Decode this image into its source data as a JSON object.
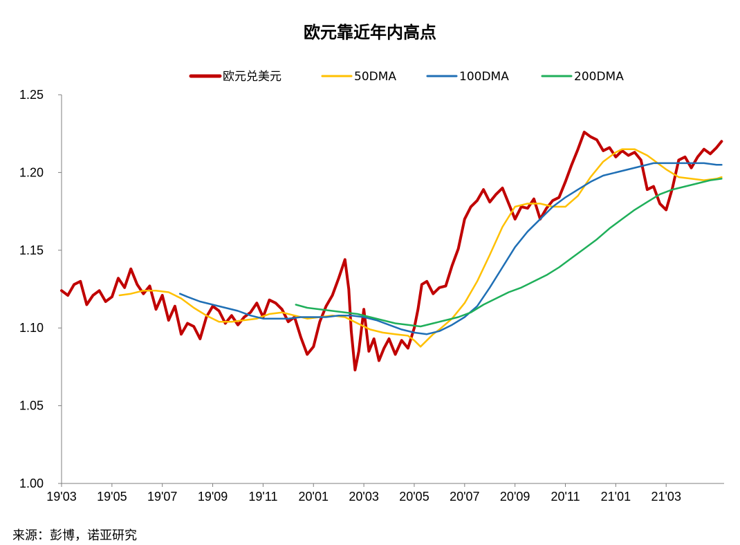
{
  "chart_data": {
    "type": "line",
    "title": "欧元靠近年内高点",
    "source": "来源：彭博，诺亚研究",
    "xlabel": "",
    "ylabel": "",
    "ylim": [
      1.0,
      1.25
    ],
    "yticks": [
      "1.25",
      "1.20",
      "1.15",
      "1.10",
      "1.05",
      "1.00"
    ],
    "ytick_values": [
      1.25,
      1.2,
      1.15,
      1.1,
      1.05,
      1.0
    ],
    "xlim": [
      0,
      26.3
    ],
    "xticks": [
      "19'03",
      "19'05",
      "19'07",
      "19'09",
      "19'11",
      "20'01",
      "20'03",
      "20'05",
      "20'07",
      "20'09",
      "20'11",
      "21'01",
      "21'03"
    ],
    "xtick_values": [
      0,
      2,
      4,
      6,
      8,
      10,
      12,
      14,
      16,
      18,
      20,
      22,
      24
    ],
    "legend_position": "top-center",
    "colors": {
      "eurusd": "#C00000",
      "dma50": "#FFC000",
      "dma100": "#1F6FB5",
      "dma200": "#1FAF5A"
    },
    "series": [
      {
        "name": "欧元兑美元",
        "key": "eurusd",
        "x": [
          0,
          0.25,
          0.5,
          0.75,
          1.0,
          1.25,
          1.5,
          1.75,
          2.0,
          2.25,
          2.5,
          2.75,
          3.0,
          3.25,
          3.5,
          3.75,
          4.0,
          4.25,
          4.5,
          4.75,
          5.0,
          5.25,
          5.5,
          5.75,
          6.0,
          6.25,
          6.5,
          6.75,
          7.0,
          7.25,
          7.5,
          7.75,
          8.0,
          8.25,
          8.5,
          8.75,
          9.0,
          9.25,
          9.5,
          9.75,
          10.0,
          10.25,
          10.5,
          10.75,
          11.0,
          11.25,
          11.4,
          11.5,
          11.65,
          11.8,
          12.0,
          12.2,
          12.4,
          12.6,
          12.8,
          13.0,
          13.25,
          13.5,
          13.75,
          14.0,
          14.15,
          14.3,
          14.5,
          14.75,
          15.0,
          15.25,
          15.5,
          15.75,
          16.0,
          16.25,
          16.5,
          16.75,
          17.0,
          17.25,
          17.5,
          17.75,
          18.0,
          18.25,
          18.5,
          18.75,
          19.0,
          19.25,
          19.5,
          19.75,
          20.0,
          20.25,
          20.5,
          20.75,
          21.0,
          21.25,
          21.5,
          21.75,
          22.0,
          22.25,
          22.5,
          22.75,
          23.0,
          23.25,
          23.5,
          23.75,
          24.0,
          24.25,
          24.5,
          24.75,
          25.0,
          25.25,
          25.5,
          25.75,
          26.0,
          26.2
        ],
        "values": [
          1.124,
          1.121,
          1.128,
          1.13,
          1.115,
          1.121,
          1.124,
          1.117,
          1.12,
          1.132,
          1.126,
          1.138,
          1.128,
          1.122,
          1.127,
          1.112,
          1.121,
          1.105,
          1.114,
          1.096,
          1.103,
          1.101,
          1.093,
          1.107,
          1.114,
          1.111,
          1.103,
          1.108,
          1.102,
          1.107,
          1.11,
          1.116,
          1.107,
          1.118,
          1.116,
          1.112,
          1.104,
          1.107,
          1.094,
          1.083,
          1.088,
          1.104,
          1.114,
          1.121,
          1.132,
          1.144,
          1.125,
          1.098,
          1.073,
          1.085,
          1.112,
          1.085,
          1.093,
          1.079,
          1.087,
          1.093,
          1.083,
          1.092,
          1.087,
          1.1,
          1.112,
          1.128,
          1.13,
          1.122,
          1.126,
          1.127,
          1.14,
          1.151,
          1.17,
          1.178,
          1.182,
          1.189,
          1.181,
          1.186,
          1.19,
          1.18,
          1.17,
          1.178,
          1.177,
          1.183,
          1.17,
          1.177,
          1.182,
          1.184,
          1.194,
          1.205,
          1.215,
          1.226,
          1.223,
          1.221,
          1.214,
          1.216,
          1.21,
          1.214,
          1.211,
          1.213,
          1.208,
          1.189,
          1.191,
          1.18,
          1.176,
          1.19,
          1.208,
          1.21,
          1.203,
          1.21,
          1.215,
          1.212,
          1.216,
          1.22
        ]
      },
      {
        "name": "50DMA",
        "key": "dma50",
        "x": [
          2.3,
          2.75,
          3.25,
          3.75,
          4.25,
          4.75,
          5.25,
          5.75,
          6.25,
          6.75,
          7.25,
          7.75,
          8.25,
          8.75,
          9.25,
          9.75,
          10.25,
          10.75,
          11.25,
          11.75,
          12.25,
          12.75,
          13.25,
          13.75,
          14.0,
          14.25,
          14.5,
          14.75,
          15.0,
          15.5,
          16.0,
          16.5,
          17.0,
          17.5,
          18.0,
          18.5,
          19.0,
          19.5,
          20.0,
          20.5,
          21.0,
          21.5,
          22.0,
          22.25,
          22.5,
          22.75,
          23.0,
          23.25,
          23.5,
          23.75,
          24.0,
          24.5,
          25.0,
          25.5,
          26.0,
          26.2
        ],
        "values": [
          1.121,
          1.122,
          1.124,
          1.124,
          1.123,
          1.119,
          1.113,
          1.108,
          1.104,
          1.104,
          1.105,
          1.106,
          1.109,
          1.11,
          1.108,
          1.106,
          1.107,
          1.108,
          1.107,
          1.103,
          1.099,
          1.097,
          1.096,
          1.095,
          1.092,
          1.088,
          1.092,
          1.096,
          1.099,
          1.106,
          1.116,
          1.13,
          1.147,
          1.165,
          1.178,
          1.18,
          1.18,
          1.178,
          1.178,
          1.185,
          1.197,
          1.207,
          1.213,
          1.215,
          1.215,
          1.215,
          1.213,
          1.211,
          1.208,
          1.205,
          1.202,
          1.197,
          1.196,
          1.195,
          1.196,
          1.197
        ]
      },
      {
        "name": "100DMA",
        "key": "dma100",
        "x": [
          4.7,
          5.0,
          5.5,
          6.0,
          6.5,
          7.0,
          7.5,
          8.0,
          8.5,
          9.0,
          9.5,
          10.0,
          10.5,
          11.0,
          11.5,
          12.0,
          12.5,
          13.0,
          13.5,
          14.0,
          14.5,
          15.0,
          15.5,
          16.0,
          16.5,
          17.0,
          17.5,
          18.0,
          18.5,
          19.0,
          19.5,
          20.0,
          20.5,
          21.0,
          21.5,
          22.0,
          22.5,
          23.0,
          23.5,
          24.0,
          24.5,
          25.0,
          25.5,
          26.0,
          26.2
        ],
        "values": [
          1.122,
          1.12,
          1.117,
          1.115,
          1.113,
          1.111,
          1.108,
          1.106,
          1.106,
          1.106,
          1.107,
          1.107,
          1.107,
          1.108,
          1.108,
          1.107,
          1.105,
          1.102,
          1.099,
          1.097,
          1.096,
          1.098,
          1.102,
          1.107,
          1.114,
          1.126,
          1.139,
          1.152,
          1.162,
          1.17,
          1.178,
          1.184,
          1.189,
          1.194,
          1.198,
          1.2,
          1.202,
          1.204,
          1.206,
          1.206,
          1.206,
          1.206,
          1.206,
          1.205,
          1.205
        ]
      },
      {
        "name": "200DMA",
        "key": "dma200",
        "x": [
          9.3,
          9.75,
          10.25,
          10.75,
          11.25,
          11.75,
          12.25,
          12.75,
          13.25,
          13.75,
          14.25,
          14.75,
          15.25,
          15.75,
          16.25,
          16.75,
          17.25,
          17.75,
          18.25,
          18.75,
          19.25,
          19.75,
          20.25,
          20.75,
          21.25,
          21.75,
          22.25,
          22.75,
          23.25,
          23.75,
          24.25,
          24.75,
          25.25,
          25.75,
          26.2
        ],
        "values": [
          1.115,
          1.113,
          1.112,
          1.111,
          1.11,
          1.109,
          1.107,
          1.105,
          1.103,
          1.102,
          1.101,
          1.103,
          1.105,
          1.107,
          1.11,
          1.115,
          1.119,
          1.123,
          1.126,
          1.13,
          1.134,
          1.139,
          1.145,
          1.151,
          1.157,
          1.164,
          1.17,
          1.176,
          1.181,
          1.186,
          1.189,
          1.191,
          1.193,
          1.195,
          1.196
        ]
      }
    ]
  }
}
